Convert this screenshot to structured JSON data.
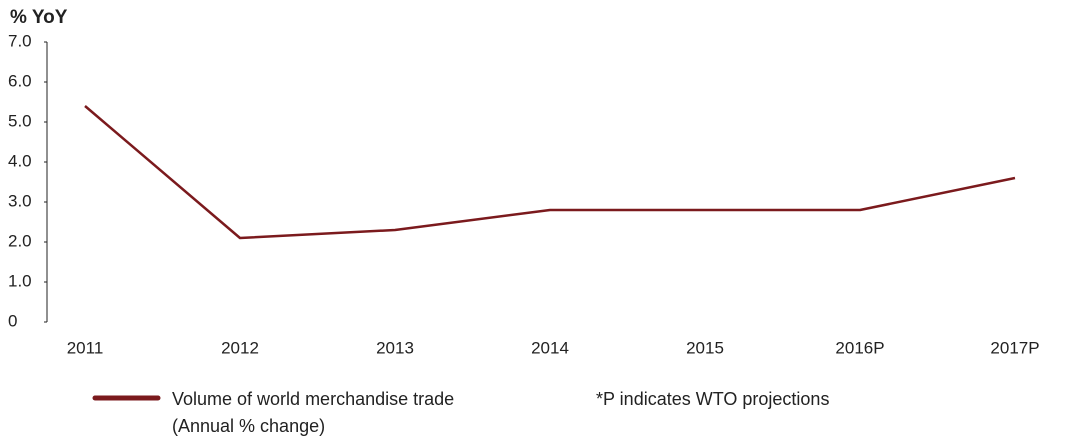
{
  "chart_data": {
    "type": "line",
    "ylabel": "% YoY",
    "categories": [
      "2011",
      "2012",
      "2013",
      "2014",
      "2015",
      "2016P",
      "2017P"
    ],
    "series": [
      {
        "name": "Volume of world merchandise trade (Annual % change)",
        "color": "#7b1a1d",
        "values": [
          5.4,
          2.1,
          2.3,
          2.8,
          2.8,
          2.8,
          3.6
        ]
      }
    ],
    "ylim": [
      0,
      7
    ],
    "yticks": [
      0,
      {
        "value": 1,
        "label": "1.0"
      },
      {
        "value": 2,
        "label": "2.0"
      },
      {
        "value": 3,
        "label": "3.0"
      },
      {
        "value": 4,
        "label": "4.0"
      },
      {
        "value": 5,
        "label": "5.0"
      },
      {
        "value": 6,
        "label": "6.0"
      },
      {
        "value": 7,
        "label": "7.0"
      }
    ],
    "annotation": "*P indicates WTO projections"
  }
}
